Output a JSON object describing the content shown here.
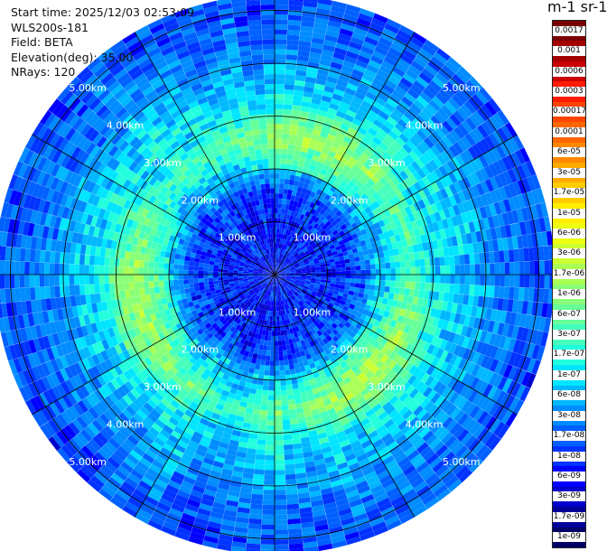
{
  "info": {
    "start_time": "Start time: 2025/12/03 02:53:09",
    "instrument": "WLS200s-181",
    "field": "Field: BETA",
    "elevation": "Elevation(deg): 35.00",
    "nrays": "NRays: 120"
  },
  "colorbar": {
    "unit_title": "m-1 sr-1",
    "labels": [
      "0.0017",
      "0.001",
      "0.0006",
      "0.0003",
      "0.00017",
      "0.0001",
      "6e-05",
      "3e-05",
      "1.7e-05",
      "1e-05",
      "6e-06",
      "3e-06",
      "1.7e-06",
      "1e-06",
      "6e-07",
      "3e-07",
      "1.7e-07",
      "1e-07",
      "6e-08",
      "3e-08",
      "1.7e-08",
      "1e-08",
      "6e-09",
      "3e-09",
      "1.7e-09",
      "1e-09"
    ],
    "colors": [
      "#7a0000",
      "#a30000",
      "#cc0000",
      "#ff1a00",
      "#ff4400",
      "#ff6600",
      "#ff8800",
      "#ffaa00",
      "#ffcc00",
      "#ffee00",
      "#eeff11",
      "#ccff33",
      "#aaff55",
      "#88ff77",
      "#66ff99",
      "#44ffbb",
      "#22ffdd",
      "#00e5ff",
      "#00b8ff",
      "#008cff",
      "#0060ff",
      "#0033ff",
      "#0000ff",
      "#0000cc",
      "#000099",
      "#000066"
    ]
  },
  "chart_data": {
    "type": "heatmap",
    "projection": "polar PPI",
    "field": "BETA",
    "elevation_deg": 35.0,
    "n_rays": 120,
    "range_rings_km": [
      1,
      2,
      3,
      4,
      5
    ],
    "ring_labels": [
      "1.00km",
      "2.00km",
      "3.00km",
      "4.00km",
      "5.00km"
    ],
    "max_range_km": 5.3,
    "spoke_interval_deg": 30,
    "radial_profile": [
      {
        "range_km": 0.0,
        "beta": "1e-08"
      },
      {
        "range_km": 1.0,
        "beta": "1e-08"
      },
      {
        "range_km": 1.6,
        "beta": "1.7e-08"
      },
      {
        "range_km": 2.1,
        "beta": "1.7e-07"
      },
      {
        "range_km": 2.6,
        "beta": "1e-06"
      },
      {
        "range_km": 3.2,
        "beta": "1.7e-07"
      },
      {
        "range_km": 3.9,
        "beta": "6e-08"
      },
      {
        "range_km": 4.5,
        "beta": "3e-08"
      },
      {
        "range_km": 5.3,
        "beta": "1.7e-08"
      }
    ]
  }
}
